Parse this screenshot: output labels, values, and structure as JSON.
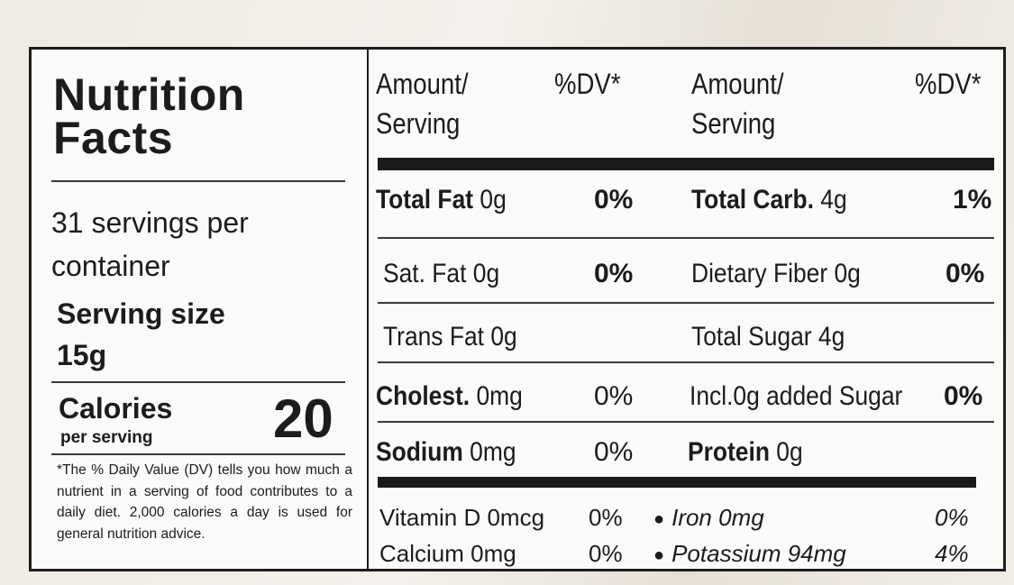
{
  "label": {
    "title_line1": "Nutrition",
    "title_line2": "Facts",
    "servings_line1": "31 servings per",
    "servings_line2": "container",
    "serving_size_label": "Serving size",
    "serving_size_value": "15g",
    "calories_label": "Calories",
    "calories_sub": "per serving",
    "calories_value": "20",
    "footnote": "*The % Daily Value (DV) tells you how much a nutrient in a serving of food contributes to a daily diet. 2,000 calories a day is used for general nutrition advice."
  },
  "headers": {
    "amount_line1": "Amount/",
    "amount_line2": "Serving",
    "dv": "%DV*"
  },
  "left_nutrients": [
    {
      "name": "Total Fat",
      "amount": "0g",
      "dv": "0%",
      "bold": true
    },
    {
      "name": "Sat. Fat",
      "amount": "0g",
      "dv": "0%",
      "bold": false
    },
    {
      "name": "Trans Fat",
      "amount": "0g",
      "dv": "",
      "bold": false
    },
    {
      "name": "Cholest.",
      "amount": "0mg",
      "dv": "0%",
      "bold": true
    },
    {
      "name": "Sodium",
      "amount": "0mg",
      "dv": "0%",
      "bold": true
    }
  ],
  "right_nutrients": [
    {
      "name": "Total Carb.",
      "amount": "4g",
      "dv": "1%",
      "bold": true
    },
    {
      "name": "Dietary Fiber",
      "amount": "0g",
      "dv": "0%",
      "bold": false
    },
    {
      "name": "Total Sugar",
      "amount": "4g",
      "dv": "",
      "bold": false
    },
    {
      "name": "Incl.",
      "amount": "0g added Sugar",
      "dv": "0%",
      "bold": false
    },
    {
      "name": "Protein",
      "amount": "0g",
      "dv": "",
      "bold": true
    }
  ],
  "vitamins": [
    {
      "name": "Vitamin D",
      "amount": "0mcg",
      "dv": "0%"
    },
    {
      "name": "Iron",
      "amount": "0mg",
      "dv": "0%"
    },
    {
      "name": "Calcium",
      "amount": "0mg",
      "dv": "0%"
    },
    {
      "name": "Potassium",
      "amount": "94mg",
      "dv": "4%"
    }
  ]
}
